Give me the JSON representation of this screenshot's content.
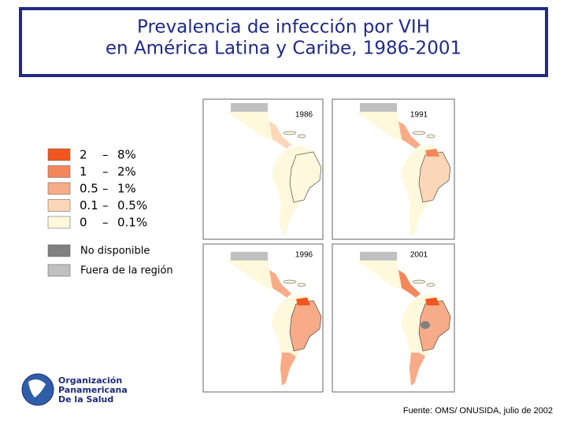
{
  "header": {
    "title_line1": "Prevalencia de infección por VIH",
    "title_line2": "en América Latina y Caribe, 1986-2001"
  },
  "legend": {
    "items": [
      {
        "from": "2",
        "dash": "–",
        "to": "8%",
        "color": "#f0561e"
      },
      {
        "from": "1",
        "dash": "–",
        "to": "2%",
        "color": "#f4865c"
      },
      {
        "from": "0.5",
        "dash": "–",
        "to": "1%",
        "color": "#f8ab88"
      },
      {
        "from": "0.1",
        "dash": "–",
        "to": "0.5%",
        "color": "#fcd6b8"
      },
      {
        "from": "0",
        "dash": "–",
        "to": "0.1%",
        "color": "#fff8dc"
      }
    ],
    "no_data": {
      "label": "No disponible",
      "color": "#808080"
    },
    "outside": {
      "label": "Fuera de la región",
      "color": "#c0c0c0"
    }
  },
  "maps": [
    {
      "year": "1986"
    },
    {
      "year": "1991"
    },
    {
      "year": "1996"
    },
    {
      "year": "2001"
    }
  ],
  "logo": {
    "line1": "Organización",
    "line2": "Panamericana",
    "line3": "De la Salud"
  },
  "footer": {
    "source": "Fuente: OMS/ ONUSIDA, julio de 2002"
  }
}
